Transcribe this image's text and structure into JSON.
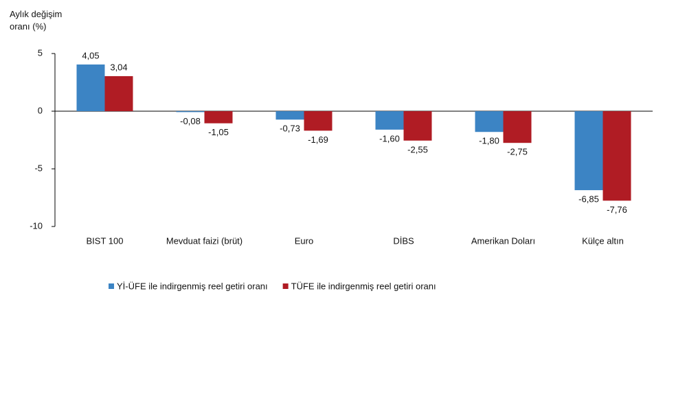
{
  "chart_data": {
    "type": "bar",
    "y_label": "Aylık değişim oranı (%)",
    "categories": [
      "BIST 100",
      "Mevduat faizi (brüt)",
      "Euro",
      "DİBS",
      "Amerikan Doları",
      "Külçe altın"
    ],
    "series": [
      {
        "name": "Yİ-ÜFE ile indirgenmiş reel getiri oranı",
        "color": "#3c84c4",
        "values": [
          4.05,
          -0.08,
          -0.73,
          -1.6,
          -1.8,
          -6.85
        ],
        "value_labels": [
          "4,05",
          "-0,08",
          "-0,73",
          "-1,60",
          "-1,80",
          "-6,85"
        ]
      },
      {
        "name": "TÜFE ile indirgenmiş reel getiri oranı",
        "color": "#b01c24",
        "values": [
          3.04,
          -1.05,
          -1.69,
          -2.55,
          -2.75,
          -7.76
        ],
        "value_labels": [
          "3,04",
          "-1,05",
          "-1,69",
          "-2,55",
          "-2,75",
          "-7,76"
        ]
      }
    ],
    "ylim": [
      -10,
      5
    ],
    "yticks": [
      5,
      0,
      -5,
      -10
    ]
  }
}
